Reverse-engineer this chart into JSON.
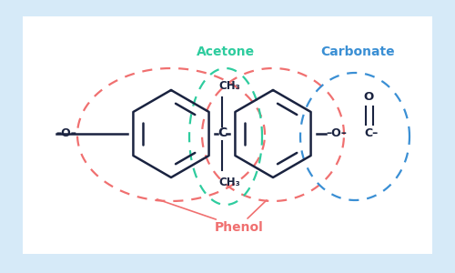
{
  "background_outer": "#d6eaf8",
  "background_inner": "#ffffff",
  "dark_color": "#1a2340",
  "phenol_color": "#f07070",
  "acetone_color": "#2ecc9e",
  "carbonate_color": "#3a8fd4",
  "fig_width": 5.0,
  "fig_height": 3.0,
  "dpi": 100,
  "phenol_label": "Phenol",
  "acetone_label": "Acetone",
  "carbonate_label": "Carbonate"
}
